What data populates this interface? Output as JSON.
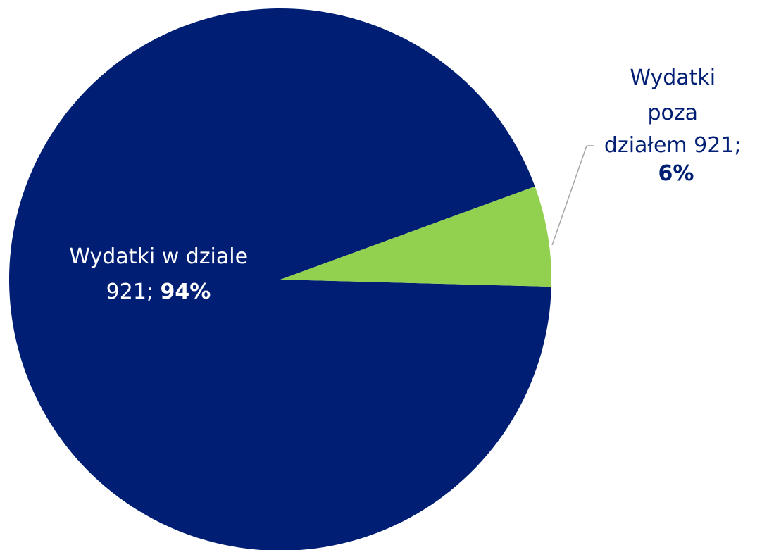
{
  "chart_data": {
    "type": "pie",
    "title": "",
    "slices": [
      {
        "label": "Wydatki w dziale 921",
        "value": 94,
        "value_label": "94%",
        "color": "#001E73"
      },
      {
        "label": "Wydatki poza działem 921",
        "value": 6,
        "value_label": "6%",
        "color": "#92D050"
      }
    ],
    "label_color_inside": "#FFFFFF",
    "label_color_outside": "#001E73",
    "leader_line_color": "#A6A6A6",
    "legend": "none"
  },
  "labels": {
    "inside": {
      "line1": "Wydatki w dziale",
      "line2_prefix": "921; ",
      "pct": "94%"
    },
    "outside": {
      "line1": "Wydatki",
      "line2": "poza",
      "line3": "działem 921;",
      "pct": "6%"
    }
  }
}
